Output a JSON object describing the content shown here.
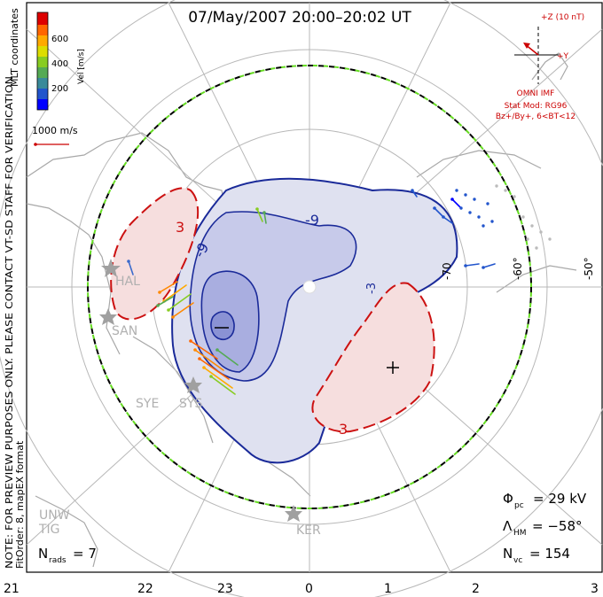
{
  "title": "07/May/2007 20:00–20:02 UT",
  "coord_label": "MLT coordinates",
  "colorbar": {
    "label": "Vel [m/s]",
    "ticks": [
      "600",
      "400",
      "200"
    ],
    "colors": [
      "#0000ff",
      "#2255cc",
      "#3a8a9a",
      "#55aa55",
      "#88cc22",
      "#dddd00",
      "#ffaa00",
      "#ff6600",
      "#dd0000"
    ]
  },
  "scale_vector": "1000 m/s",
  "notice": "NOTE: FOR PREVIEW PURPOSES ONLY. PLEASE CONTACT VT-SD STAFF FOR VERIFICATION.",
  "fit_order": "FitOrder: 8, mapEX format",
  "imf": {
    "top_label": "+Z (10 nT)",
    "y_label": "+Y",
    "source": "OMNI IMF",
    "model": "Stat Mod: RG96",
    "condition": "Bz+/By+, 6<BT<12"
  },
  "latitude_labels": [
    "-70",
    "-60°",
    "-50°"
  ],
  "contour_labels": [
    "3",
    "-9",
    "-9",
    "-3",
    "3"
  ],
  "stations": [
    "HAL",
    "SAN",
    "SYE",
    "SYS",
    "UNW",
    "TIG",
    "KER"
  ],
  "stats": {
    "phi_pc": {
      "symbol": "Φ",
      "sub": "pc",
      "value": "= 29 kV"
    },
    "lambda_hm": {
      "symbol": "Λ",
      "sub": "HM",
      "value": "= −58°"
    },
    "n_vc": {
      "symbol": "N",
      "sub": "vc",
      "value": "= 154"
    },
    "n_rads": {
      "symbol": "N",
      "sub": "rads",
      "value": "= 7"
    }
  },
  "mlt_ticks": [
    "21",
    "22",
    "23",
    "0",
    "1",
    "2",
    "3"
  ],
  "colors": {
    "negative_cell": "#1a2a99",
    "positive_cell": "#cc1111",
    "hm_boundary_dash_a": "#000000",
    "hm_boundary_dash_b": "#66dd22",
    "coastline": "#a8a8a8"
  }
}
